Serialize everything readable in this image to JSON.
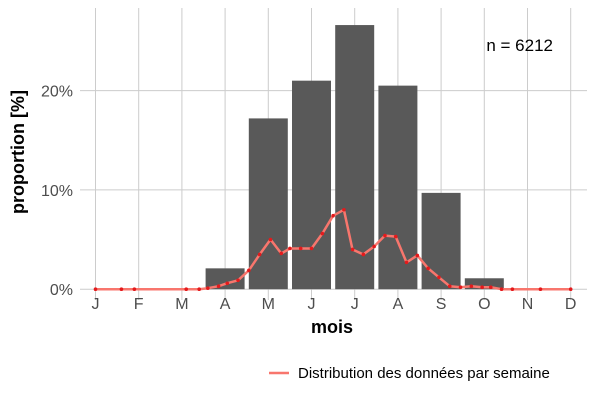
{
  "chart_data": {
    "type": "bar",
    "categories": [
      "J",
      "F",
      "M",
      "A",
      "M",
      "J",
      "J",
      "A",
      "S",
      "O",
      "N",
      "D"
    ],
    "values": [
      0,
      0,
      0,
      2.1,
      17.2,
      21.0,
      26.6,
      20.5,
      9.7,
      1.1,
      0,
      0
    ],
    "ylabel": "proportion [%]",
    "xlabel": "mois",
    "ylim": [
      0,
      28.5
    ],
    "yticks": [
      {
        "value": 0,
        "label": "0%"
      },
      {
        "value": 10,
        "label": "10%"
      },
      {
        "value": 20,
        "label": "20%"
      }
    ],
    "annotation": "n = 6212",
    "bar_color": "#595959",
    "line_series": {
      "name": "Distribution des données par semaine",
      "color": "#f8766d",
      "point_color": "#e41a1c",
      "x": [
        0,
        0.6,
        0.9,
        2.1,
        2.4,
        2.6,
        2.85,
        3.05,
        3.3,
        3.55,
        3.8,
        4.05,
        4.3,
        4.5,
        4.75,
        5.0,
        5.25,
        5.5,
        5.75,
        5.95,
        6.2,
        6.45,
        6.7,
        6.95,
        7.2,
        7.45,
        7.7,
        7.95,
        8.2,
        8.45,
        8.7,
        8.95,
        9.15,
        9.4,
        9.65,
        10.3,
        11.0
      ],
      "y": [
        0,
        0,
        0,
        0,
        0,
        0.1,
        0.3,
        0.6,
        0.9,
        1.9,
        3.5,
        5.0,
        3.6,
        4.1,
        4.1,
        4.1,
        5.6,
        7.4,
        8.0,
        4.0,
        3.5,
        4.3,
        5.4,
        5.3,
        2.7,
        3.4,
        2.1,
        1.2,
        0.3,
        0.2,
        0.3,
        0.2,
        0.2,
        0,
        0,
        0,
        0
      ]
    },
    "grid": true,
    "legend_position": "bottom-right"
  }
}
